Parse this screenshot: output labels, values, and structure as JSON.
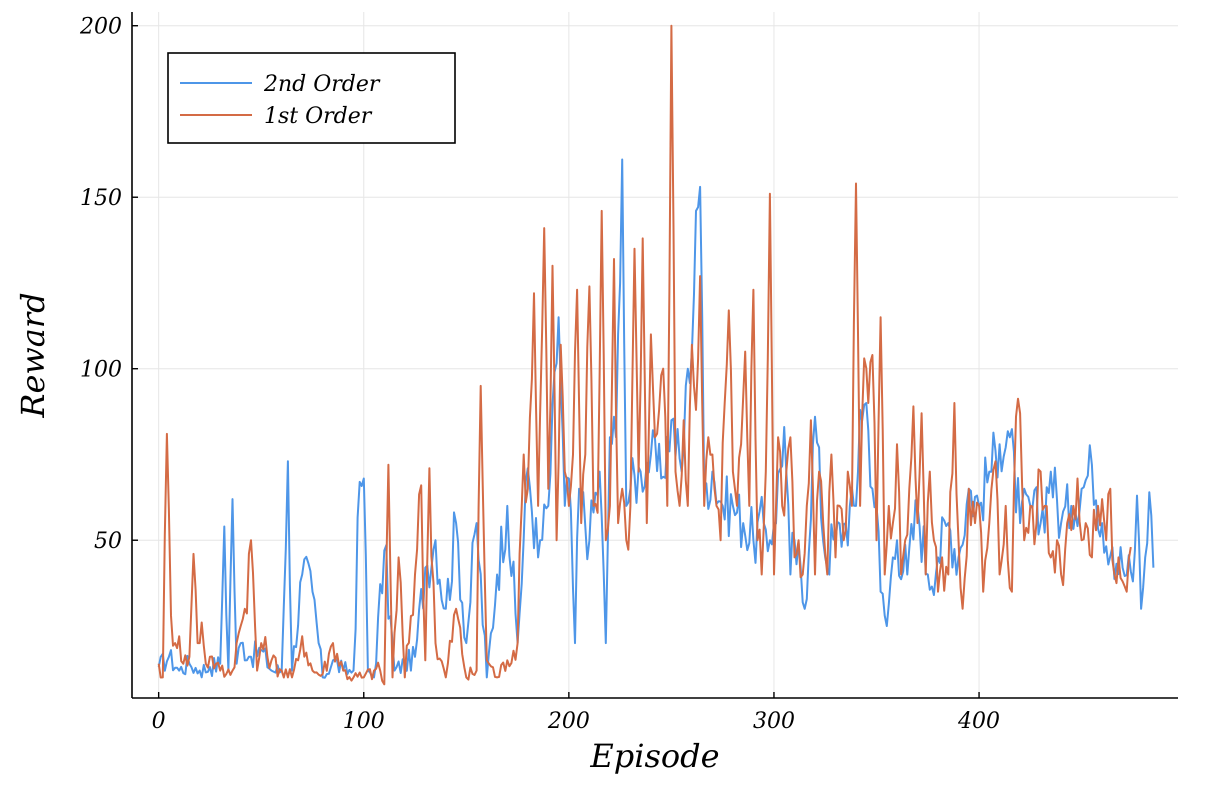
{
  "chart_data": {
    "type": "line",
    "xlabel": "Episode",
    "ylabel": "Reward",
    "xlim": [
      -13,
      497
    ],
    "ylim": [
      4,
      204
    ],
    "x_ticks": [
      0,
      100,
      200,
      300,
      400
    ],
    "y_ticks": [
      50,
      100,
      150,
      200
    ],
    "grid": true,
    "legend_position": "top-left",
    "series": [
      {
        "name": "2nd Order",
        "color": "#4e96e8",
        "keypoints": [
          [
            0,
            13
          ],
          [
            5,
            16
          ],
          [
            10,
            12
          ],
          [
            15,
            14
          ],
          [
            20,
            12
          ],
          [
            25,
            13
          ],
          [
            30,
            14
          ],
          [
            32,
            54
          ],
          [
            34,
            12
          ],
          [
            36,
            62
          ],
          [
            38,
            14
          ],
          [
            40,
            20
          ],
          [
            45,
            16
          ],
          [
            50,
            18
          ],
          [
            55,
            12
          ],
          [
            60,
            12
          ],
          [
            63,
            73
          ],
          [
            65,
            12
          ],
          [
            70,
            40
          ],
          [
            75,
            35
          ],
          [
            80,
            10
          ],
          [
            85,
            15
          ],
          [
            90,
            12
          ],
          [
            95,
            12
          ],
          [
            98,
            67
          ],
          [
            100,
            68
          ],
          [
            102,
            12
          ],
          [
            105,
            10
          ],
          [
            110,
            47
          ],
          [
            115,
            12
          ],
          [
            120,
            14
          ],
          [
            125,
            16
          ],
          [
            130,
            42
          ],
          [
            135,
            50
          ],
          [
            140,
            30
          ],
          [
            145,
            55
          ],
          [
            150,
            20
          ],
          [
            155,
            55
          ],
          [
            160,
            10
          ],
          [
            165,
            40
          ],
          [
            170,
            60
          ],
          [
            175,
            20
          ],
          [
            180,
            71
          ],
          [
            185,
            45
          ],
          [
            190,
            60
          ],
          [
            195,
            115
          ],
          [
            198,
            60
          ],
          [
            200,
            68
          ],
          [
            203,
            20
          ],
          [
            205,
            65
          ],
          [
            210,
            50
          ],
          [
            215,
            70
          ],
          [
            218,
            20
          ],
          [
            220,
            80
          ],
          [
            223,
            80
          ],
          [
            226,
            161
          ],
          [
            228,
            60
          ],
          [
            230,
            65
          ],
          [
            235,
            70
          ],
          [
            240,
            75
          ],
          [
            245,
            68
          ],
          [
            250,
            85
          ],
          [
            255,
            70
          ],
          [
            258,
            100
          ],
          [
            260,
            105
          ],
          [
            262,
            146
          ],
          [
            264,
            153
          ],
          [
            266,
            65
          ],
          [
            270,
            70
          ],
          [
            275,
            60
          ],
          [
            280,
            60
          ],
          [
            285,
            55
          ],
          [
            290,
            50
          ],
          [
            295,
            55
          ],
          [
            298,
            50
          ],
          [
            300,
            55
          ],
          [
            305,
            83
          ],
          [
            308,
            40
          ],
          [
            310,
            50
          ],
          [
            315,
            30
          ],
          [
            320,
            86
          ],
          [
            325,
            45
          ],
          [
            330,
            50
          ],
          [
            335,
            55
          ],
          [
            340,
            60
          ],
          [
            342,
            88
          ],
          [
            345,
            90
          ],
          [
            348,
            65
          ],
          [
            350,
            60
          ],
          [
            352,
            35
          ],
          [
            355,
            25
          ],
          [
            358,
            45
          ],
          [
            360,
            50
          ],
          [
            365,
            40
          ],
          [
            370,
            60
          ],
          [
            375,
            40
          ],
          [
            380,
            45
          ],
          [
            385,
            55
          ],
          [
            390,
            45
          ],
          [
            395,
            65
          ],
          [
            400,
            60
          ],
          [
            405,
            70
          ],
          [
            410,
            78
          ],
          [
            415,
            80
          ],
          [
            420,
            55
          ],
          [
            425,
            60
          ],
          [
            430,
            55
          ],
          [
            435,
            70
          ],
          [
            440,
            55
          ],
          [
            445,
            60
          ],
          [
            450,
            65
          ],
          [
            455,
            72
          ],
          [
            460,
            55
          ],
          [
            465,
            48
          ],
          [
            470,
            42
          ],
          [
            475,
            38
          ],
          [
            477,
            63
          ],
          [
            479,
            30
          ],
          [
            481,
            45
          ],
          [
            483,
            64
          ],
          [
            485,
            42
          ]
        ]
      },
      {
        "name": "1st Order",
        "color": "#d46b45",
        "keypoints": [
          [
            0,
            14
          ],
          [
            2,
            10
          ],
          [
            4,
            81
          ],
          [
            6,
            28
          ],
          [
            8,
            20
          ],
          [
            10,
            22
          ],
          [
            12,
            14
          ],
          [
            15,
            16
          ],
          [
            17,
            46
          ],
          [
            19,
            20
          ],
          [
            21,
            26
          ],
          [
            23,
            14
          ],
          [
            25,
            16
          ],
          [
            28,
            14
          ],
          [
            30,
            12
          ],
          [
            33,
            11
          ],
          [
            36,
            12
          ],
          [
            38,
            20
          ],
          [
            40,
            25
          ],
          [
            42,
            30
          ],
          [
            45,
            50
          ],
          [
            48,
            12
          ],
          [
            50,
            20
          ],
          [
            55,
            15
          ],
          [
            60,
            12
          ],
          [
            65,
            10
          ],
          [
            68,
            15
          ],
          [
            70,
            22
          ],
          [
            75,
            12
          ],
          [
            80,
            11
          ],
          [
            85,
            20
          ],
          [
            90,
            12
          ],
          [
            95,
            10
          ],
          [
            100,
            10
          ],
          [
            105,
            12
          ],
          [
            108,
            12
          ],
          [
            110,
            8
          ],
          [
            112,
            72
          ],
          [
            114,
            10
          ],
          [
            117,
            45
          ],
          [
            120,
            10
          ],
          [
            125,
            40
          ],
          [
            128,
            66
          ],
          [
            130,
            15
          ],
          [
            132,
            71
          ],
          [
            135,
            20
          ],
          [
            140,
            10
          ],
          [
            145,
            30
          ],
          [
            150,
            10
          ],
          [
            155,
            12
          ],
          [
            157,
            95
          ],
          [
            160,
            15
          ],
          [
            165,
            10
          ],
          [
            170,
            15
          ],
          [
            175,
            20
          ],
          [
            178,
            75
          ],
          [
            180,
            65
          ],
          [
            183,
            122
          ],
          [
            185,
            60
          ],
          [
            188,
            141
          ],
          [
            190,
            65
          ],
          [
            192,
            130
          ],
          [
            194,
            50
          ],
          [
            196,
            107
          ],
          [
            198,
            70
          ],
          [
            200,
            60
          ],
          [
            202,
            75
          ],
          [
            204,
            123
          ],
          [
            206,
            55
          ],
          [
            208,
            75
          ],
          [
            210,
            124
          ],
          [
            212,
            60
          ],
          [
            214,
            58
          ],
          [
            216,
            146
          ],
          [
            218,
            50
          ],
          [
            220,
            60
          ],
          [
            222,
            132
          ],
          [
            224,
            55
          ],
          [
            226,
            65
          ],
          [
            228,
            50
          ],
          [
            230,
            60
          ],
          [
            232,
            135
          ],
          [
            234,
            70
          ],
          [
            236,
            138
          ],
          [
            238,
            55
          ],
          [
            240,
            110
          ],
          [
            242,
            80
          ],
          [
            244,
            88
          ],
          [
            246,
            100
          ],
          [
            248,
            60
          ],
          [
            250,
            200
          ],
          [
            252,
            70
          ],
          [
            254,
            60
          ],
          [
            256,
            85
          ],
          [
            258,
            60
          ],
          [
            260,
            107
          ],
          [
            262,
            88
          ],
          [
            264,
            127
          ],
          [
            266,
            60
          ],
          [
            268,
            80
          ],
          [
            270,
            75
          ],
          [
            272,
            60
          ],
          [
            274,
            50
          ],
          [
            276,
            90
          ],
          [
            278,
            117
          ],
          [
            280,
            70
          ],
          [
            282,
            60
          ],
          [
            284,
            78
          ],
          [
            286,
            105
          ],
          [
            288,
            60
          ],
          [
            290,
            123
          ],
          [
            292,
            50
          ],
          [
            294,
            40
          ],
          [
            296,
            70
          ],
          [
            298,
            151
          ],
          [
            300,
            40
          ],
          [
            302,
            80
          ],
          [
            304,
            60
          ],
          [
            306,
            70
          ],
          [
            308,
            80
          ],
          [
            310,
            45
          ],
          [
            312,
            50
          ],
          [
            314,
            40
          ],
          [
            316,
            60
          ],
          [
            318,
            85
          ],
          [
            320,
            40
          ],
          [
            322,
            70
          ],
          [
            324,
            55
          ],
          [
            326,
            40
          ],
          [
            328,
            75
          ],
          [
            330,
            45
          ],
          [
            332,
            60
          ],
          [
            334,
            50
          ],
          [
            336,
            70
          ],
          [
            338,
            60
          ],
          [
            340,
            154
          ],
          [
            342,
            60
          ],
          [
            344,
            103
          ],
          [
            346,
            90
          ],
          [
            348,
            104
          ],
          [
            350,
            50
          ],
          [
            352,
            115
          ],
          [
            354,
            40
          ],
          [
            356,
            60
          ],
          [
            358,
            55
          ],
          [
            360,
            78
          ],
          [
            362,
            40
          ],
          [
            364,
            50
          ],
          [
            366,
            65
          ],
          [
            368,
            89
          ],
          [
            370,
            55
          ],
          [
            372,
            87
          ],
          [
            374,
            40
          ],
          [
            376,
            70
          ],
          [
            378,
            50
          ],
          [
            380,
            35
          ],
          [
            382,
            45
          ],
          [
            385,
            40
          ],
          [
            388,
            90
          ],
          [
            390,
            50
          ],
          [
            392,
            30
          ],
          [
            395,
            65
          ],
          [
            398,
            55
          ],
          [
            400,
            60
          ],
          [
            402,
            35
          ],
          [
            405,
            55
          ],
          [
            408,
            73
          ],
          [
            410,
            40
          ],
          [
            413,
            60
          ],
          [
            416,
            35
          ],
          [
            418,
            86
          ],
          [
            420,
            87
          ],
          [
            422,
            50
          ],
          [
            425,
            60
          ],
          [
            428,
            55
          ],
          [
            430,
            70
          ],
          [
            432,
            60
          ],
          [
            435,
            45
          ],
          [
            438,
            50
          ],
          [
            440,
            40
          ],
          [
            443,
            55
          ],
          [
            446,
            60
          ],
          [
            448,
            68
          ],
          [
            450,
            50
          ],
          [
            452,
            55
          ],
          [
            455,
            45
          ],
          [
            458,
            60
          ],
          [
            460,
            62
          ],
          [
            462,
            50
          ],
          [
            464,
            65
          ],
          [
            466,
            40
          ],
          [
            468,
            45
          ],
          [
            470,
            38
          ],
          [
            472,
            35
          ],
          [
            474,
            48
          ]
        ]
      }
    ]
  }
}
